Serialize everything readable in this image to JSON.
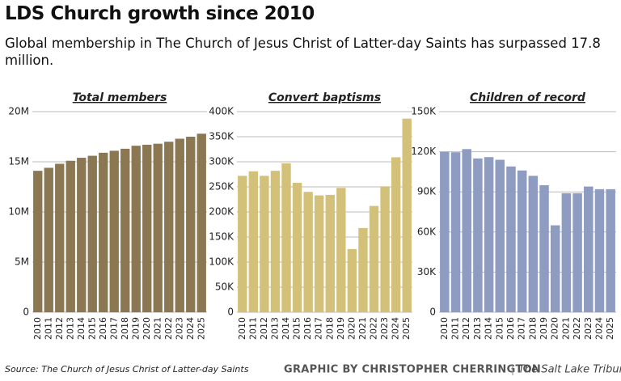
{
  "title": "LDS Church growth since 2010",
  "subtitle": "Global membership in The Church of Jesus Christ of Latter-day Saints has surpassed 17.8 million.",
  "source": "Source: The Church of Jesus Christ of Latter-day Saints",
  "credit": "GRAPHIC BY CHRISTOPHER CHERRINGTON",
  "publication": "The Salt Lake Tribune",
  "chart_data": [
    {
      "type": "bar",
      "title": "Total members",
      "categories": [
        "2010",
        "2011",
        "2012",
        "2013",
        "2014",
        "2015",
        "2016",
        "2017",
        "2018",
        "2019",
        "2020",
        "2021",
        "2022",
        "2023",
        "2024",
        "2025"
      ],
      "values": [
        14100000,
        14400000,
        14800000,
        15100000,
        15400000,
        15600000,
        15900000,
        16100000,
        16300000,
        16600000,
        16700000,
        16800000,
        17000000,
        17300000,
        17500000,
        17800000
      ],
      "color": "#8b7752",
      "ylim": [
        0,
        20000000
      ],
      "yticks": [
        0,
        {
          "value": 5000000,
          "label": "5M"
        },
        {
          "value": 10000000,
          "label": "10M"
        },
        {
          "value": 15000000,
          "label": "15M"
        },
        {
          "value": 20000000,
          "label": "20M"
        }
      ],
      "grid": true
    },
    {
      "type": "bar",
      "title": "Convert baptisms",
      "categories": [
        "2010",
        "2011",
        "2012",
        "2013",
        "2014",
        "2015",
        "2016",
        "2017",
        "2018",
        "2019",
        "2020",
        "2021",
        "2022",
        "2023",
        "2024",
        "2025"
      ],
      "values": [
        272000,
        281000,
        272000,
        282000,
        297000,
        258000,
        240000,
        233000,
        234000,
        248000,
        126000,
        168000,
        212000,
        251000,
        309000,
        386000
      ],
      "color": "#d3c17a",
      "ylim": [
        0,
        400000
      ],
      "yticks": [
        0,
        {
          "value": 50000,
          "label": "50K"
        },
        {
          "value": 100000,
          "label": "100K"
        },
        {
          "value": 150000,
          "label": "150K"
        },
        {
          "value": 200000,
          "label": "200K"
        },
        {
          "value": 250000,
          "label": "250K"
        },
        {
          "value": 300000,
          "label": "300K"
        },
        {
          "value": 350000,
          "label": "350K"
        },
        {
          "value": 400000,
          "label": "400K"
        }
      ],
      "grid": true
    },
    {
      "type": "bar",
      "title": "Children of record",
      "categories": [
        "2010",
        "2011",
        "2012",
        "2013",
        "2014",
        "2015",
        "2016",
        "2017",
        "2018",
        "2019",
        "2020",
        "2021",
        "2022",
        "2023",
        "2024",
        "2025"
      ],
      "values": [
        120000,
        119600,
        122000,
        115000,
        116000,
        114000,
        109000,
        106000,
        102000,
        95000,
        65000,
        89000,
        89000,
        94000,
        92000,
        92000
      ],
      "color": "#8e9cc2",
      "ylim": [
        0,
        150000
      ],
      "yticks": [
        0,
        {
          "value": 30000,
          "label": "30K"
        },
        {
          "value": 60000,
          "label": "60K"
        },
        {
          "value": 90000,
          "label": "90K"
        },
        {
          "value": 120000,
          "label": "120K"
        },
        {
          "value": 150000,
          "label": "150K"
        }
      ],
      "grid": true
    }
  ]
}
